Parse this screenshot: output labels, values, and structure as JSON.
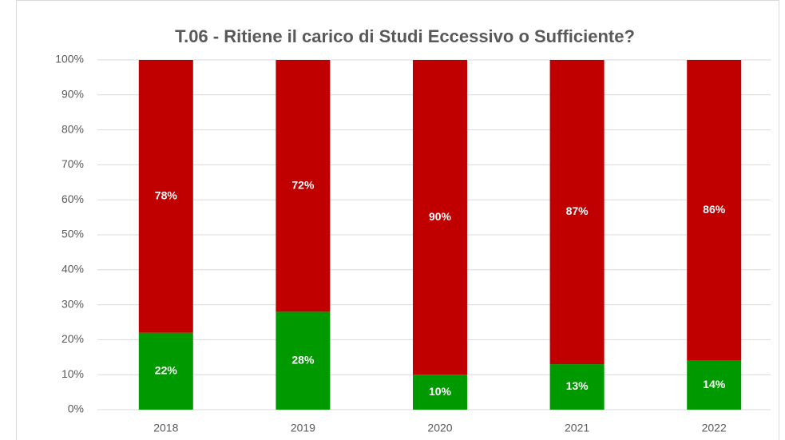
{
  "chart_data": {
    "type": "stacked_bar",
    "title": "T.06 - Ritiene il carico di Studi Eccessivo o Sufficiente?",
    "categories": [
      "2018",
      "2019",
      "2020",
      "2021",
      "2022"
    ],
    "series": [
      {
        "color": "#009900",
        "values": [
          22,
          28,
          10,
          13,
          14
        ],
        "value_labels": [
          "22%",
          "28%",
          "10%",
          "13%",
          "14%"
        ]
      },
      {
        "color": "#c00000",
        "values": [
          78,
          72,
          90,
          87,
          86
        ],
        "value_labels": [
          "78%",
          "72%",
          "90%",
          "87%",
          "86%"
        ]
      }
    ],
    "ylim": [
      0,
      100
    ],
    "yticks": [
      {
        "value": 0,
        "label": "0%"
      },
      {
        "value": 10,
        "label": "10%"
      },
      {
        "value": 20,
        "label": "20%"
      },
      {
        "value": 30,
        "label": "30%"
      },
      {
        "value": 40,
        "label": "40%"
      },
      {
        "value": 50,
        "label": "50%"
      },
      {
        "value": 60,
        "label": "60%"
      },
      {
        "value": 70,
        "label": "70%"
      },
      {
        "value": 80,
        "label": "80%"
      },
      {
        "value": 90,
        "label": "90%"
      },
      {
        "value": 100,
        "label": "100%"
      }
    ],
    "grid": true
  }
}
